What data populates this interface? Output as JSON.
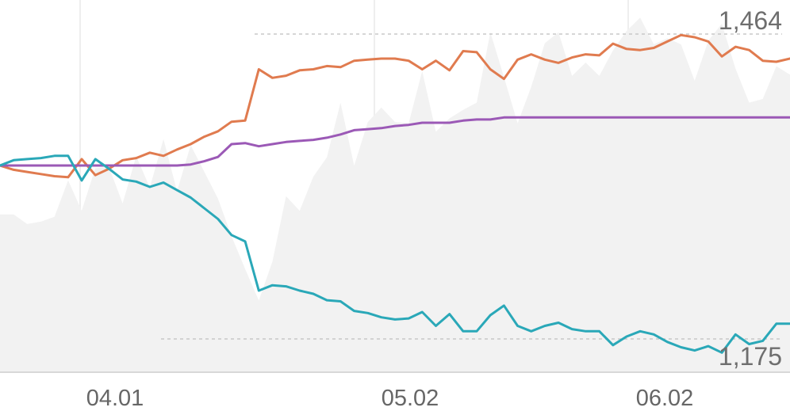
{
  "chart_data": {
    "type": "line",
    "x_ticks": [
      "04.01",
      "05.02",
      "06.02"
    ],
    "value_labels": {
      "max": "1,464",
      "min": "1,175"
    },
    "ylim": [
      1175,
      1464
    ],
    "grid": "vertical",
    "colors": {
      "orange": "#e07b4f",
      "purple": "#9b59b6",
      "teal": "#2aa8b8",
      "area": "#f2f2f2",
      "grid": "#eeeeee",
      "axis": "#d8d8d8",
      "ref": "#c8c8c8"
    },
    "series": [
      {
        "color": "orange",
        "values": [
          0,
          -4,
          -6,
          -8,
          -10,
          -11,
          6,
          -9,
          -3,
          5,
          7,
          12,
          9,
          15,
          20,
          27,
          32,
          41,
          42,
          90,
          82,
          84,
          89,
          90,
          93,
          92,
          98,
          99,
          100,
          100,
          98,
          90,
          98,
          89,
          107,
          106,
          90,
          81,
          99,
          104,
          99,
          96,
          101,
          104,
          103,
          114,
          109,
          108,
          110,
          116,
          122,
          120,
          116,
          102,
          111,
          108,
          98,
          97,
          100
        ]
      },
      {
        "color": "purple",
        "values": [
          0,
          0,
          0,
          0,
          0,
          0,
          0,
          0,
          0,
          0,
          0,
          0,
          0,
          0,
          1,
          4,
          8,
          20,
          21,
          18,
          20,
          22,
          23,
          24,
          26,
          29,
          33,
          34,
          35,
          37,
          38,
          40,
          40,
          40,
          42,
          43,
          43,
          45,
          45,
          45,
          45,
          45,
          45,
          45,
          45,
          45,
          45,
          45,
          45,
          45,
          45,
          45,
          45,
          45,
          45,
          45,
          45,
          45,
          45
        ]
      },
      {
        "color": "teal",
        "values": [
          0,
          5,
          6,
          7,
          9,
          9,
          -14,
          6,
          -3,
          -13,
          -15,
          -20,
          -16,
          -23,
          -30,
          -40,
          -50,
          -65,
          -71,
          -117,
          -112,
          -113,
          -117,
          -120,
          -126,
          -127,
          -136,
          -138,
          -142,
          -144,
          -143,
          -137,
          -150,
          -139,
          -155,
          -155,
          -140,
          -131,
          -150,
          -155,
          -150,
          -147,
          -153,
          -155,
          -155,
          -168,
          -160,
          -155,
          -158,
          -165,
          -170,
          -173,
          -169,
          -175,
          -158,
          -167,
          -164,
          -148,
          -148
        ]
      }
    ],
    "area_values": [
      130,
      130,
      122,
      124,
      128,
      158,
      133,
      168,
      169,
      139,
      178,
      152,
      192,
      149,
      187,
      165,
      143,
      112,
      85,
      59,
      91,
      145,
      133,
      161,
      177,
      222,
      170,
      206,
      218,
      206,
      205,
      248,
      198,
      209,
      216,
      222,
      280,
      243,
      205,
      235,
      271,
      280,
      244,
      255,
      244,
      265,
      281,
      292,
      270,
      275,
      270,
      240,
      273,
      287,
      250,
      222,
      225,
      252,
      245
    ]
  }
}
